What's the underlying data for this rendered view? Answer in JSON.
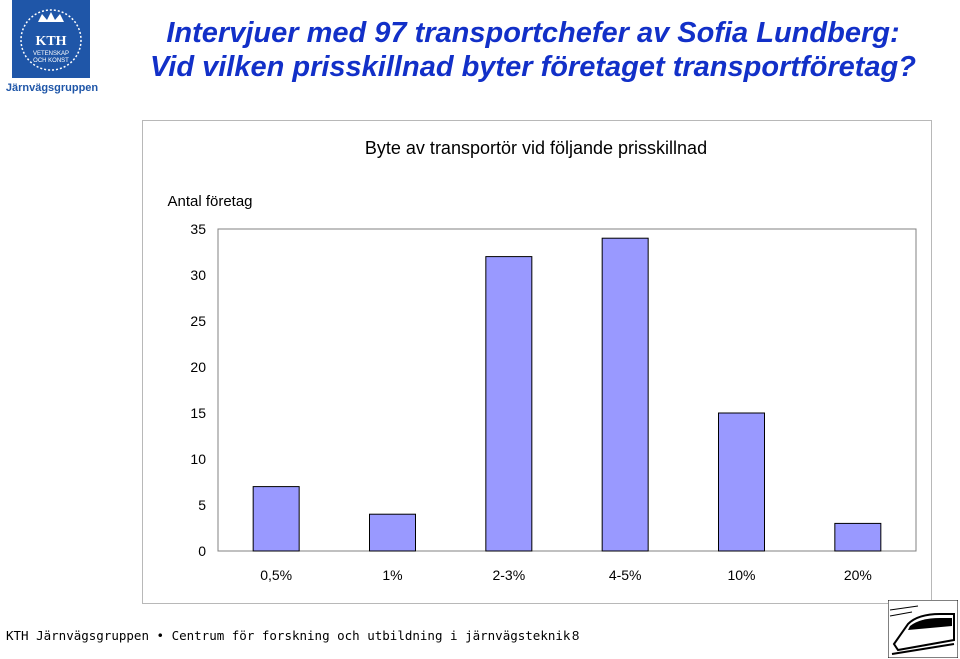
{
  "header": {
    "logo_text_top": "KTH",
    "logo_text_sub1": "VETENSKAP",
    "logo_text_sub2": "OCH KONST",
    "logo_caption": "Järnvägsgruppen",
    "title_line1": "Intervjuer med 97 transportchefer av Sofia Lundberg:",
    "title_line2": "Vid vilken prisskillnad byter företaget transportföretag?"
  },
  "chart_data": {
    "type": "bar",
    "title": "Byte av transportör vid följande prisskillnad",
    "ylabel": "Antal företag",
    "xlabel": "",
    "categories": [
      "0,5%",
      "1%",
      "2-3%",
      "4-5%",
      "10%",
      "20%"
    ],
    "values": [
      7,
      4,
      32,
      34,
      15,
      3
    ],
    "ylim": [
      0,
      35
    ],
    "yticks": [
      0,
      5,
      10,
      15,
      20,
      25,
      30,
      35
    ],
    "grid": false,
    "bar_color": "#9999ff",
    "legend": "none"
  },
  "footer": {
    "text": "KTH Järnvägsgruppen • Centrum för forskning och utbildning i järnvägsteknik",
    "page_number": "8"
  },
  "colors": {
    "title": "#1230c8",
    "logo_bg": "#1f56a8"
  }
}
